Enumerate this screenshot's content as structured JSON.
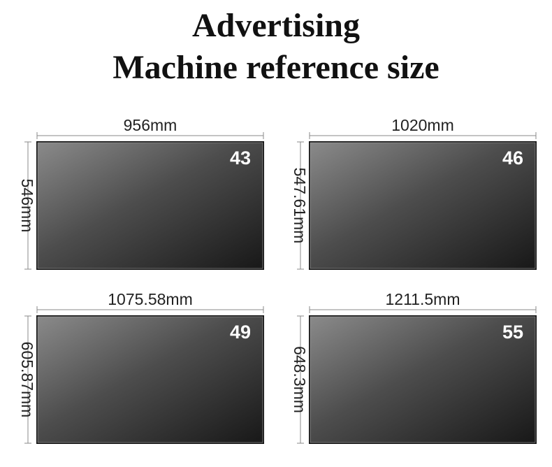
{
  "title": {
    "line1": "Advertising",
    "line2": "Machine reference size"
  },
  "screens": [
    {
      "size": "43",
      "width": "956mm",
      "height": "546mm"
    },
    {
      "size": "46",
      "width": "1020mm",
      "height": "547.61mm"
    },
    {
      "size": "49",
      "width": "1075.58mm",
      "height": "605.87mm"
    },
    {
      "size": "55",
      "width": "1211.5mm",
      "height": "648.3mm"
    }
  ]
}
